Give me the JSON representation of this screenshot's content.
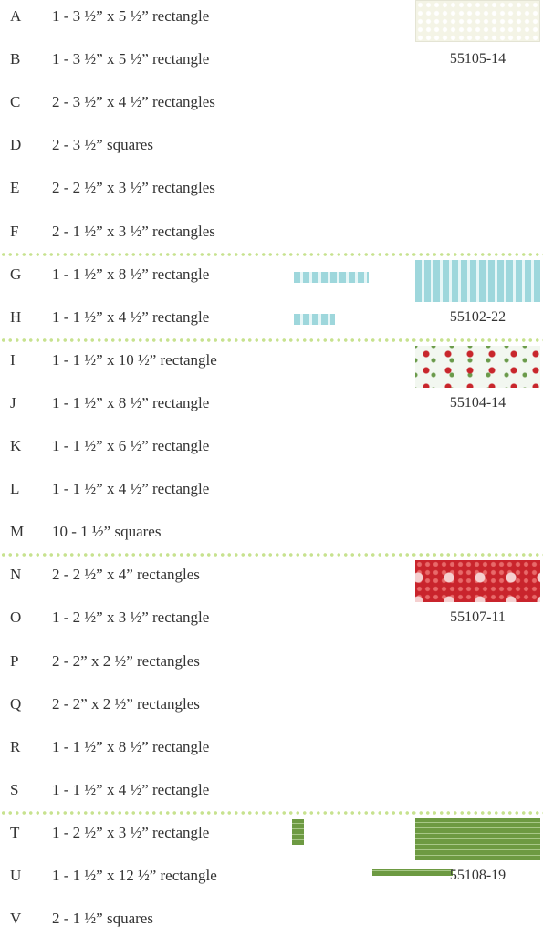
{
  "groups": [
    {
      "swatch": "55105-14",
      "rows": [
        {
          "letter": "A",
          "text": "1 - 3 ½” x 5 ½” rectangle"
        },
        {
          "letter": "B",
          "text": "1 - 3 ½” x 5 ½” rectangle"
        },
        {
          "letter": "C",
          "text": "2 - 3 ½” x 4 ½” rectangles"
        },
        {
          "letter": "D",
          "text": "2 - 3 ½” squares"
        },
        {
          "letter": "E",
          "text": "2 - 2 ½” x 3 ½” rectangles"
        },
        {
          "letter": "F",
          "text": "2 - 1 ½” x 3 ½” rectangles"
        }
      ]
    },
    {
      "swatch": "55102-22",
      "rows": [
        {
          "letter": "G",
          "text": "1 - 1 ½” x 8 ½” rectangle"
        },
        {
          "letter": "H",
          "text": "1 - 1 ½” x 4 ½” rectangle"
        }
      ]
    },
    {
      "swatch": "55104-14",
      "rows": [
        {
          "letter": "I",
          "text": "1 - 1 ½” x 10 ½” rectangle"
        },
        {
          "letter": "J",
          "text": "1 - 1 ½” x 8 ½” rectangle"
        },
        {
          "letter": "K",
          "text": "1 - 1 ½” x 6 ½” rectangle"
        },
        {
          "letter": "L",
          "text": "1 - 1 ½” x 4 ½” rectangle"
        },
        {
          "letter": "M",
          "text": "10 - 1 ½” squares"
        }
      ]
    },
    {
      "swatch": "55107-11",
      "rows": [
        {
          "letter": "N",
          "text": "2 - 2 ½” x 4” rectangles"
        },
        {
          "letter": "O",
          "text": "1 - 2 ½” x 3 ½” rectangle"
        },
        {
          "letter": "P",
          "text": "2 - 2” x 2 ½” rectangles"
        },
        {
          "letter": "Q",
          "text": "2 - 2” x 2 ½” rectangles"
        },
        {
          "letter": "R",
          "text": "1 - 1 ½” x 8 ½” rectangle"
        },
        {
          "letter": "S",
          "text": "1 - 1 ½” x 4 ½” rectangle"
        }
      ]
    },
    {
      "swatch": "55108-19",
      "rows": [
        {
          "letter": "T",
          "text": "1 - 2 ½” x 3 ½” rectangle"
        },
        {
          "letter": "U",
          "text": "1 - 1 ½” x 12 ½” rectangle"
        },
        {
          "letter": "V",
          "text": "2 - 1 ½” squares"
        }
      ]
    }
  ]
}
